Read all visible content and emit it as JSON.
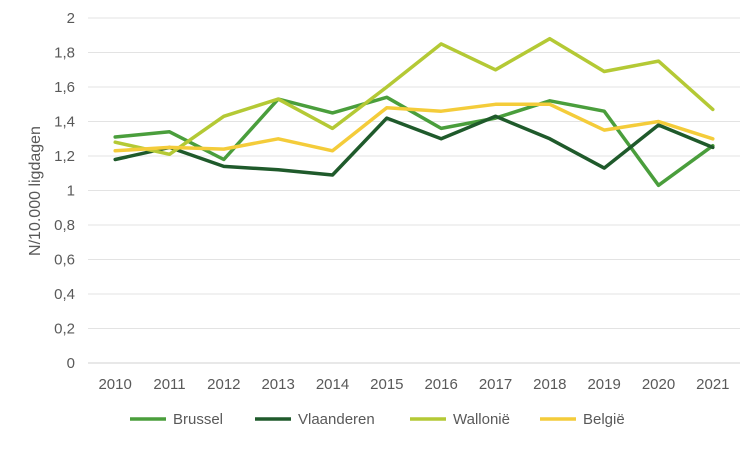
{
  "chart_data": {
    "type": "line",
    "title": "",
    "xlabel": "",
    "ylabel": "N/10.000 ligdagen",
    "categories": [
      "2010",
      "2011",
      "2012",
      "2013",
      "2014",
      "2015",
      "2016",
      "2017",
      "2018",
      "2019",
      "2020",
      "2021"
    ],
    "ylim": [
      0,
      2
    ],
    "yticks": [
      0,
      0.2,
      0.4,
      0.6,
      0.8,
      1,
      1.2,
      1.4,
      1.6,
      1.8,
      2
    ],
    "ytick_labels": [
      "0",
      "0,2",
      "0,4",
      "0,6",
      "0,8",
      "1",
      "1,2",
      "1,4",
      "1,6",
      "1,8",
      "2"
    ],
    "grid": true,
    "legend_position": "bottom",
    "series": [
      {
        "name": "Brussel",
        "color": "#4a9e3c",
        "values": [
          1.31,
          1.34,
          1.18,
          1.53,
          1.45,
          1.54,
          1.36,
          1.42,
          1.52,
          1.46,
          1.03,
          1.26
        ]
      },
      {
        "name": "Vlaanderen",
        "color": "#1f5a2b",
        "values": [
          1.18,
          1.25,
          1.14,
          1.12,
          1.09,
          1.42,
          1.3,
          1.43,
          1.3,
          1.13,
          1.38,
          1.25
        ]
      },
      {
        "name": "Wallonië",
        "color": "#b4c935",
        "values": [
          1.28,
          1.21,
          1.43,
          1.53,
          1.36,
          1.6,
          1.85,
          1.7,
          1.88,
          1.69,
          1.75,
          1.47
        ]
      },
      {
        "name": "België",
        "color": "#f4cc3a",
        "values": [
          1.23,
          1.25,
          1.24,
          1.3,
          1.23,
          1.48,
          1.46,
          1.5,
          1.5,
          1.35,
          1.4,
          1.3
        ]
      }
    ]
  }
}
